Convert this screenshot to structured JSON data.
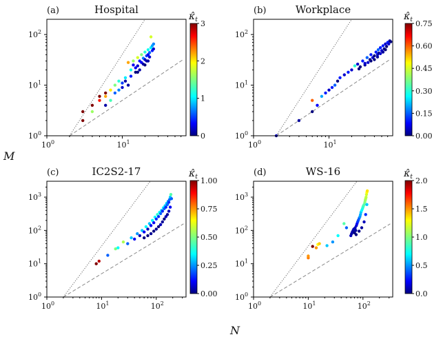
{
  "figure": {
    "xlabel": "N",
    "ylabel": "M",
    "colorbar_title": "κ̂",
    "colorbar_title_sub": "t"
  },
  "chart_data": [
    {
      "type": "scatter",
      "panel": "(a)",
      "title": "Hospital",
      "x_scale": "log",
      "y_scale": "log",
      "xlim": [
        1,
        70
      ],
      "ylim": [
        1,
        200
      ],
      "x_ticks": [
        {
          "v": 1,
          "label": "10",
          "exp": "0"
        },
        {
          "v": 10,
          "label": "10",
          "exp": "1"
        }
      ],
      "y_ticks": [
        {
          "v": 1,
          "label": "10",
          "exp": "0"
        },
        {
          "v": 10,
          "label": "10",
          "exp": "1"
        },
        {
          "v": 100,
          "label": "10",
          "exp": "2"
        }
      ],
      "colorbar": {
        "min": 0,
        "max": 3,
        "ticks": [
          0,
          1,
          2,
          3
        ],
        "labels": [
          "0",
          "1",
          "2",
          "3"
        ]
      },
      "points": [
        [
          3,
          2,
          3.0
        ],
        [
          3,
          3,
          3.0
        ],
        [
          4,
          4,
          3.0
        ],
        [
          4,
          3,
          1.6
        ],
        [
          5,
          6,
          3.0
        ],
        [
          5,
          5,
          2.6
        ],
        [
          6,
          7,
          3.0
        ],
        [
          6,
          4,
          0.1
        ],
        [
          6,
          6,
          2.2
        ],
        [
          7,
          8,
          2.0
        ],
        [
          7,
          5,
          1.3
        ],
        [
          8,
          10,
          1.5
        ],
        [
          8,
          7,
          0.6
        ],
        [
          9,
          12,
          1.2
        ],
        [
          9,
          8,
          0.7
        ],
        [
          10,
          11,
          0.5
        ],
        [
          10,
          9,
          0.2
        ],
        [
          11,
          14,
          1.0
        ],
        [
          12,
          28,
          2.2
        ],
        [
          12,
          10,
          0.1
        ],
        [
          13,
          20,
          1.1
        ],
        [
          13,
          15,
          0.4
        ],
        [
          14,
          25,
          0.3
        ],
        [
          14,
          30,
          1.6
        ],
        [
          15,
          18,
          0.0
        ],
        [
          15,
          22,
          0.3
        ],
        [
          16,
          35,
          1.8
        ],
        [
          16,
          24,
          0.2
        ],
        [
          17,
          30,
          0.4
        ],
        [
          17,
          20,
          0.1
        ],
        [
          18,
          40,
          1.5
        ],
        [
          18,
          28,
          0.3
        ],
        [
          19,
          26,
          0.1
        ],
        [
          19,
          34,
          0.7
        ],
        [
          20,
          45,
          1.2
        ],
        [
          20,
          32,
          0.2
        ],
        [
          21,
          38,
          0.5
        ],
        [
          21,
          30,
          0.1
        ],
        [
          22,
          50,
          1.1
        ],
        [
          22,
          40,
          0.3
        ],
        [
          23,
          44,
          0.6
        ],
        [
          23,
          36,
          0.2
        ],
        [
          24,
          90,
          1.8
        ],
        [
          24,
          55,
          1.0
        ],
        [
          25,
          60,
          0.8
        ],
        [
          25,
          48,
          0.4
        ],
        [
          26,
          65,
          0.7
        ],
        [
          26,
          52,
          0.2
        ],
        [
          11,
          12,
          0.1
        ],
        [
          16,
          18,
          0.0
        ],
        [
          20,
          25,
          0.0
        ],
        [
          22,
          30,
          0.1
        ]
      ]
    },
    {
      "type": "scatter",
      "panel": "(b)",
      "title": "Workplace",
      "x_scale": "log",
      "y_scale": "log",
      "xlim": [
        1,
        70
      ],
      "ylim": [
        1,
        200
      ],
      "x_ticks": [
        {
          "v": 1,
          "label": "10",
          "exp": "0"
        },
        {
          "v": 10,
          "label": "10",
          "exp": "1"
        }
      ],
      "y_ticks": [
        {
          "v": 1,
          "label": "10",
          "exp": "0"
        },
        {
          "v": 10,
          "label": "10",
          "exp": "1"
        },
        {
          "v": 100,
          "label": "10",
          "exp": "2"
        }
      ],
      "colorbar": {
        "min": 0,
        "max": 0.75,
        "ticks": [
          0,
          0.15,
          0.3,
          0.45,
          0.6,
          0.75
        ],
        "labels": [
          "0.00",
          "0.15",
          "0.30",
          "0.45",
          "0.60",
          "0.75"
        ]
      },
      "points": [
        [
          2,
          1,
          0.05
        ],
        [
          4,
          2,
          0.02
        ],
        [
          6,
          3,
          0.0
        ],
        [
          6,
          5,
          0.6
        ],
        [
          7,
          4,
          0.08
        ],
        [
          8,
          6,
          0.2
        ],
        [
          9,
          7,
          0.1
        ],
        [
          10,
          8,
          0.05
        ],
        [
          11,
          9,
          0.1
        ],
        [
          12,
          10,
          0.15
        ],
        [
          13,
          12,
          0.0
        ],
        [
          14,
          14,
          0.1
        ],
        [
          16,
          16,
          0.05
        ],
        [
          18,
          18,
          0.1
        ],
        [
          20,
          20,
          0.05
        ],
        [
          22,
          24,
          0.3
        ],
        [
          24,
          26,
          0.05
        ],
        [
          25,
          21,
          0.0
        ],
        [
          28,
          30,
          0.1
        ],
        [
          30,
          25,
          0.02
        ],
        [
          32,
          35,
          0.15
        ],
        [
          33,
          28,
          0.05
        ],
        [
          35,
          32,
          0.0
        ],
        [
          36,
          40,
          0.1
        ],
        [
          38,
          35,
          0.05
        ],
        [
          40,
          38,
          0.0
        ],
        [
          42,
          45,
          0.1
        ],
        [
          44,
          40,
          0.05
        ],
        [
          45,
          50,
          0.15
        ],
        [
          46,
          43,
          0.0
        ],
        [
          48,
          55,
          0.1
        ],
        [
          50,
          48,
          0.05
        ],
        [
          52,
          60,
          0.1
        ],
        [
          54,
          52,
          0.0
        ],
        [
          56,
          65,
          0.05
        ],
        [
          58,
          58,
          0.0
        ],
        [
          60,
          70,
          0.1
        ],
        [
          62,
          65,
          0.05
        ],
        [
          64,
          75,
          0.02
        ],
        [
          66,
          72,
          0.0
        ],
        [
          40,
          32,
          0.0
        ],
        [
          44,
          36,
          0.02
        ],
        [
          48,
          42,
          0.05
        ],
        [
          36,
          30,
          0.0
        ],
        [
          52,
          45,
          0.02
        ],
        [
          30,
          27,
          0.05
        ],
        [
          26,
          23,
          0.0
        ],
        [
          56,
          50,
          0.0
        ]
      ]
    },
    {
      "type": "scatter",
      "panel": "(c)",
      "title": "IC2S2-17",
      "x_scale": "log",
      "y_scale": "log",
      "xlim": [
        1,
        350
      ],
      "ylim": [
        1,
        3000
      ],
      "x_ticks": [
        {
          "v": 1,
          "label": "10",
          "exp": "0"
        },
        {
          "v": 10,
          "label": "10",
          "exp": "1"
        },
        {
          "v": 100,
          "label": "10",
          "exp": "2"
        }
      ],
      "y_ticks": [
        {
          "v": 1,
          "label": "10",
          "exp": "0"
        },
        {
          "v": 10,
          "label": "10",
          "exp": "1"
        },
        {
          "v": 100,
          "label": "10",
          "exp": "2"
        },
        {
          "v": 1000,
          "label": "10",
          "exp": "3"
        }
      ],
      "colorbar": {
        "min": 0,
        "max": 1,
        "ticks": [
          0,
          0.25,
          0.5,
          0.75,
          1
        ],
        "labels": [
          "0.00",
          "0.25",
          "0.50",
          "0.75",
          "1.00"
        ]
      },
      "points": [
        [
          8,
          10,
          1.0
        ],
        [
          9,
          12,
          0.95
        ],
        [
          13,
          18,
          0.2
        ],
        [
          18,
          28,
          0.5
        ],
        [
          20,
          30,
          0.35
        ],
        [
          25,
          45,
          0.55
        ],
        [
          30,
          40,
          0.2
        ],
        [
          35,
          60,
          0.3
        ],
        [
          40,
          55,
          0.1
        ],
        [
          45,
          80,
          0.25
        ],
        [
          50,
          70,
          0.05
        ],
        [
          55,
          100,
          0.3
        ],
        [
          60,
          90,
          0.1
        ],
        [
          65,
          130,
          0.35
        ],
        [
          70,
          110,
          0.05
        ],
        [
          75,
          160,
          0.3
        ],
        [
          80,
          140,
          0.1
        ],
        [
          85,
          200,
          0.35
        ],
        [
          90,
          170,
          0.1
        ],
        [
          95,
          250,
          0.35
        ],
        [
          100,
          220,
          0.15
        ],
        [
          105,
          300,
          0.4
        ],
        [
          110,
          260,
          0.15
        ],
        [
          115,
          350,
          0.35
        ],
        [
          120,
          320,
          0.2
        ],
        [
          125,
          400,
          0.3
        ],
        [
          130,
          380,
          0.15
        ],
        [
          135,
          480,
          0.35
        ],
        [
          140,
          450,
          0.2
        ],
        [
          145,
          550,
          0.3
        ],
        [
          150,
          500,
          0.15
        ],
        [
          155,
          650,
          0.3
        ],
        [
          160,
          600,
          0.2
        ],
        [
          165,
          750,
          0.25
        ],
        [
          170,
          700,
          0.15
        ],
        [
          175,
          850,
          0.2
        ],
        [
          180,
          1000,
          0.3
        ],
        [
          185,
          1200,
          0.45
        ],
        [
          60,
          60,
          0.0
        ],
        [
          70,
          70,
          0.0
        ],
        [
          80,
          80,
          0.02
        ],
        [
          90,
          95,
          0.0
        ],
        [
          100,
          110,
          0.02
        ],
        [
          110,
          130,
          0.0
        ],
        [
          120,
          150,
          0.05
        ],
        [
          130,
          180,
          0.02
        ],
        [
          140,
          220,
          0.0
        ],
        [
          150,
          260,
          0.05
        ],
        [
          160,
          300,
          0.02
        ],
        [
          170,
          380,
          0.05
        ],
        [
          180,
          500,
          0.1
        ],
        [
          190,
          900,
          0.2
        ]
      ]
    },
    {
      "type": "scatter",
      "panel": "(d)",
      "title": "WS-16",
      "x_scale": "log",
      "y_scale": "log",
      "xlim": [
        1,
        350
      ],
      "ylim": [
        1,
        3000
      ],
      "x_ticks": [
        {
          "v": 1,
          "label": "10",
          "exp": "0"
        },
        {
          "v": 10,
          "label": "10",
          "exp": "1"
        },
        {
          "v": 100,
          "label": "10",
          "exp": "2"
        }
      ],
      "y_ticks": [
        {
          "v": 1,
          "label": "10",
          "exp": "0"
        },
        {
          "v": 10,
          "label": "10",
          "exp": "1"
        },
        {
          "v": 100,
          "label": "10",
          "exp": "2"
        },
        {
          "v": 1000,
          "label": "10",
          "exp": "3"
        }
      ],
      "colorbar": {
        "min": 0,
        "max": 2,
        "ticks": [
          0,
          0.5,
          1,
          1.5,
          2
        ],
        "labels": [
          "0.0",
          "0.5",
          "1.0",
          "1.5",
          "2.0"
        ]
      },
      "points": [
        [
          10,
          15,
          1.55
        ],
        [
          10,
          17,
          1.5
        ],
        [
          12,
          33,
          2.0
        ],
        [
          14,
          30,
          1.5
        ],
        [
          15,
          38,
          1.3
        ],
        [
          16,
          40,
          1.4
        ],
        [
          22,
          35,
          0.6
        ],
        [
          28,
          45,
          0.5
        ],
        [
          35,
          70,
          0.7
        ],
        [
          45,
          160,
          0.9
        ],
        [
          50,
          120,
          0.4
        ],
        [
          60,
          70,
          0.1
        ],
        [
          62,
          80,
          0.05
        ],
        [
          64,
          90,
          0.1
        ],
        [
          66,
          100,
          0.05
        ],
        [
          68,
          110,
          0.1
        ],
        [
          70,
          85,
          0.0
        ],
        [
          72,
          120,
          0.1
        ],
        [
          74,
          100,
          0.05
        ],
        [
          76,
          140,
          0.15
        ],
        [
          78,
          160,
          0.2
        ],
        [
          80,
          180,
          0.3
        ],
        [
          82,
          200,
          0.35
        ],
        [
          85,
          230,
          0.4
        ],
        [
          88,
          260,
          0.5
        ],
        [
          90,
          300,
          0.55
        ],
        [
          92,
          350,
          0.6
        ],
        [
          95,
          400,
          0.7
        ],
        [
          98,
          450,
          0.75
        ],
        [
          100,
          500,
          0.8
        ],
        [
          102,
          550,
          0.85
        ],
        [
          105,
          600,
          0.9
        ],
        [
          108,
          700,
          1.0
        ],
        [
          110,
          800,
          1.05
        ],
        [
          112,
          900,
          1.1
        ],
        [
          114,
          1000,
          1.15
        ],
        [
          116,
          1200,
          1.2
        ],
        [
          118,
          1400,
          1.3
        ],
        [
          120,
          1550,
          1.35
        ],
        [
          75,
          75,
          0.0
        ],
        [
          85,
          95,
          0.02
        ],
        [
          95,
          120,
          0.05
        ],
        [
          105,
          180,
          0.1
        ],
        [
          112,
          300,
          0.3
        ],
        [
          118,
          600,
          0.6
        ]
      ]
    }
  ]
}
